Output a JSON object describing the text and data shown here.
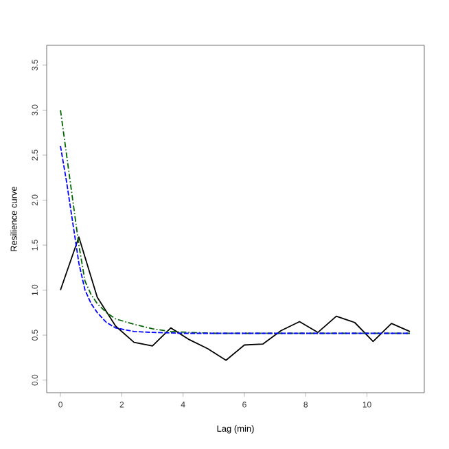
{
  "chart_data": {
    "type": "line",
    "xlabel": "Lag (min)",
    "ylabel": "Resilience curve",
    "xlim": [
      -0.45,
      11.87
    ],
    "ylim": [
      -0.14,
      3.72
    ],
    "xticks": [
      0,
      2,
      4,
      6,
      8,
      10
    ],
    "yticks": [
      {
        "value": 0,
        "label": "0.0"
      },
      0.5,
      {
        "value": 1,
        "label": "1.0"
      },
      1.5,
      {
        "value": 2,
        "label": "2.0"
      },
      2.5,
      {
        "value": 3,
        "label": "3.0"
      },
      3.5
    ],
    "series": [
      {
        "color": "#000000",
        "line_style": "solid",
        "x": [
          0,
          0.6,
          1.2,
          1.8,
          2.4,
          3.0,
          3.6,
          4.2,
          4.8,
          5.4,
          6.0,
          6.6,
          7.2,
          7.8,
          8.4,
          9.0,
          9.6,
          10.2,
          10.8,
          11.4
        ],
        "values": [
          1.0,
          1.59,
          0.92,
          0.6,
          0.42,
          0.38,
          0.58,
          0.45,
          0.35,
          0.22,
          0.39,
          0.4,
          0.55,
          0.65,
          0.53,
          0.71,
          0.64,
          0.43,
          0.63,
          0.54
        ]
      },
      {
        "color": "#006400",
        "line_style": "dashdot",
        "x": [
          0,
          0.2,
          0.4,
          0.6,
          0.8,
          1.0,
          1.2,
          1.5,
          1.8,
          2.4,
          3.0,
          3.6,
          4.2,
          5.0,
          11.4
        ],
        "values": [
          3.0,
          2.5,
          2.0,
          1.5,
          1.1,
          0.95,
          0.85,
          0.75,
          0.68,
          0.62,
          0.57,
          0.54,
          0.53,
          0.52,
          0.52
        ]
      },
      {
        "color": "#0000ff",
        "line_style": "dashed",
        "x": [
          0,
          0.2,
          0.4,
          0.6,
          0.8,
          1.0,
          1.2,
          1.5,
          1.8,
          2.4,
          3.0,
          4.0,
          11.4
        ],
        "values": [
          2.6,
          2.2,
          1.75,
          1.3,
          1.0,
          0.85,
          0.75,
          0.64,
          0.58,
          0.54,
          0.53,
          0.52,
          0.52
        ]
      }
    ]
  }
}
